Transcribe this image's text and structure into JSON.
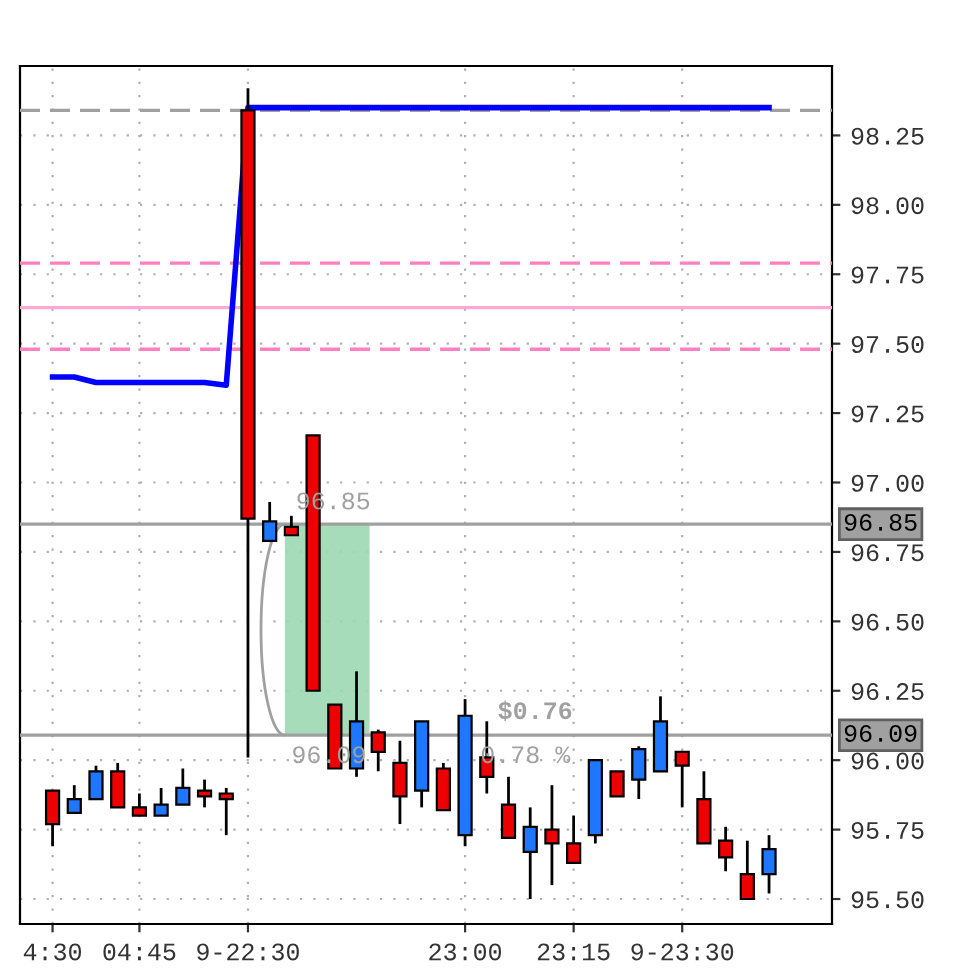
{
  "chart_data": {
    "type": "candlestick",
    "categories": [
      "4:30",
      null,
      null,
      null,
      "04:45",
      null,
      null,
      null,
      null,
      "9-22:30",
      null,
      null,
      null,
      null,
      null,
      null,
      null,
      null,
      null,
      "23:00",
      null,
      null,
      null,
      null,
      "23:15",
      null,
      null,
      null,
      null,
      "9-23:30",
      null,
      null,
      null,
      null
    ],
    "ohlc": [
      [
        95.89,
        95.89,
        95.69,
        95.77
      ],
      [
        95.81,
        95.91,
        95.81,
        95.86
      ],
      [
        95.86,
        95.98,
        95.86,
        95.96
      ],
      [
        95.96,
        95.99,
        95.83,
        95.83
      ],
      [
        95.83,
        95.88,
        95.8,
        95.8
      ],
      [
        95.8,
        95.9,
        95.8,
        95.84
      ],
      [
        95.84,
        95.97,
        95.84,
        95.9
      ],
      [
        95.89,
        95.93,
        95.83,
        95.87
      ],
      [
        95.88,
        95.9,
        95.73,
        95.86
      ],
      [
        98.34,
        98.42,
        96.01,
        96.87
      ],
      [
        96.79,
        96.93,
        96.79,
        96.86
      ],
      [
        96.84,
        96.88,
        96.81,
        96.81
      ],
      [
        97.17,
        97.17,
        96.25,
        96.25
      ],
      [
        96.2,
        96.2,
        95.97,
        95.97
      ],
      [
        95.97,
        96.32,
        95.94,
        96.14
      ],
      [
        96.1,
        96.11,
        95.96,
        96.03
      ],
      [
        95.99,
        96.07,
        95.77,
        95.87
      ],
      [
        95.89,
        96.14,
        95.83,
        96.14
      ],
      [
        95.97,
        95.99,
        95.82,
        95.82
      ],
      [
        95.73,
        96.22,
        95.69,
        96.16
      ],
      [
        96.01,
        96.14,
        95.88,
        95.94
      ],
      [
        95.84,
        95.94,
        95.72,
        95.72
      ],
      [
        95.67,
        95.83,
        95.5,
        95.76
      ],
      [
        95.75,
        95.91,
        95.55,
        95.7
      ],
      [
        95.7,
        95.8,
        95.63,
        95.63
      ],
      [
        95.73,
        96.0,
        95.7,
        96.0
      ],
      [
        95.96,
        95.96,
        95.87,
        95.87
      ],
      [
        95.93,
        96.05,
        95.86,
        96.04
      ],
      [
        95.96,
        96.23,
        95.96,
        96.14
      ],
      [
        96.03,
        96.03,
        95.83,
        95.98
      ],
      [
        95.86,
        95.96,
        95.7,
        95.7
      ],
      [
        95.71,
        95.76,
        95.6,
        95.65
      ],
      [
        95.59,
        95.71,
        95.5,
        95.5
      ],
      [
        95.59,
        95.73,
        95.52,
        95.68
      ]
    ],
    "colors": [
      "#ee0000",
      "#1e78ff",
      "#1e78ff",
      "#ee0000",
      "#ee0000",
      "#1e78ff",
      "#1e78ff",
      "#ee0000",
      "#ee0000",
      "#ee0000",
      "#1e78ff",
      "#ee0000",
      "#ee0000",
      "#ee0000",
      "#1e78ff",
      "#ee0000",
      "#ee0000",
      "#1e78ff",
      "#ee0000",
      "#1e78ff",
      "#ee0000",
      "#ee0000",
      "#1e78ff",
      "#ee0000",
      "#ee0000",
      "#1e78ff",
      "#ee0000",
      "#1e78ff",
      "#1e78ff",
      "#ee0000",
      "#ee0000",
      "#ee0000",
      "#ee0000",
      "#1e78ff"
    ],
    "series": [
      {
        "type": "line",
        "color": "#0000ff",
        "values": [
          97.38,
          97.38,
          97.36,
          97.36,
          97.36,
          97.36,
          97.36,
          97.36,
          97.35,
          98.35,
          98.35,
          98.35,
          98.35,
          98.35,
          98.35,
          98.35,
          98.35,
          98.35,
          98.35,
          98.35,
          98.35,
          98.35,
          98.35,
          98.35,
          98.35,
          98.35,
          98.35,
          98.35,
          98.35,
          98.35,
          98.35,
          98.35,
          98.35,
          98.35
        ]
      }
    ],
    "ylim": [
      95.41,
      98.5
    ],
    "yticks": [
      {
        "value": 95.5,
        "label": "95.50"
      },
      {
        "value": 95.75,
        "label": "95.75"
      },
      {
        "value": 96,
        "label": "96.00"
      },
      {
        "value": 96.25,
        "label": "96.25"
      },
      {
        "value": 96.5,
        "label": "96.50"
      },
      {
        "value": 96.75,
        "label": "96.75"
      },
      {
        "value": 97,
        "label": "97.00"
      },
      {
        "value": 97.25,
        "label": "97.25"
      },
      {
        "value": 97.5,
        "label": "97.50"
      },
      {
        "value": 97.75,
        "label": "97.75"
      },
      {
        "value": 98,
        "label": "98.00"
      },
      {
        "value": 98.25,
        "label": "98.25"
      }
    ],
    "grid": true,
    "ref_lines": [
      {
        "axis": "y",
        "value": 98.34,
        "color": "#a0a0a0",
        "line_style": "dashed"
      },
      {
        "axis": "y",
        "value": 97.79,
        "color": "#ff80c0",
        "line_style": "dashed"
      },
      {
        "axis": "y",
        "value": 97.63,
        "color": "#ffa8d4",
        "line_style": "solid"
      },
      {
        "axis": "y",
        "value": 97.48,
        "color": "#ff80c0",
        "line_style": "dashed"
      },
      {
        "axis": "y",
        "value": 96.85,
        "color": "#a0a0a0",
        "line_style": "solid",
        "label": "96.85"
      },
      {
        "axis": "y",
        "value": 96.09,
        "color": "#a0a0a0",
        "line_style": "solid",
        "label": "96.09"
      }
    ],
    "annotations": [
      {
        "text": "96.85",
        "y": 96.85
      },
      {
        "text": "96.09",
        "y": 96.09
      },
      "$0.76",
      "0.78 %"
    ]
  }
}
